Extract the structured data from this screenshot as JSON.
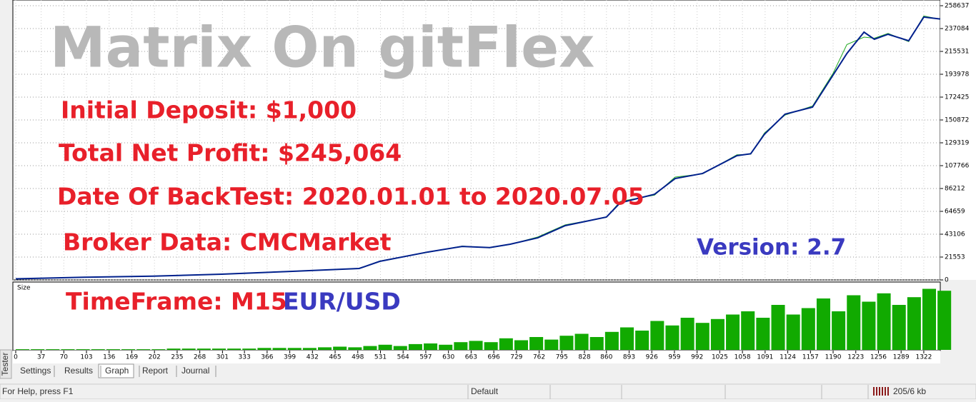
{
  "chart_data": [
    {
      "type": "line",
      "xlim": [
        0,
        1346
      ],
      "ylim": [
        0,
        258637
      ],
      "xticks": [
        0,
        37,
        70,
        103,
        136,
        169,
        202,
        235,
        268,
        301,
        333,
        366,
        399,
        432,
        465,
        498,
        531,
        564,
        597,
        630,
        663,
        696,
        729,
        762,
        795,
        828,
        860,
        893,
        926,
        959,
        992,
        1025,
        1058,
        1091,
        1124,
        1157,
        1190,
        1223,
        1256,
        1289,
        1322
      ],
      "yticks": [
        0,
        21553,
        43106,
        64659,
        86212,
        107766,
        129319,
        150872,
        172425,
        193978,
        215531,
        237084,
        258637
      ],
      "grid": true,
      "x": [
        0,
        100,
        200,
        300,
        400,
        500,
        530,
        600,
        650,
        690,
        720,
        760,
        800,
        860,
        880,
        930,
        960,
        1000,
        1050,
        1070,
        1090,
        1120,
        1160,
        1190,
        1210,
        1235,
        1250,
        1270,
        1300,
        1322,
        1346
      ],
      "series": [
        {
          "color": "#22aa22",
          "values": [
            1000,
            2400,
            3600,
            5300,
            8200,
            10600,
            17800,
            26000,
            31900,
            30200,
            33500,
            40500,
            52000,
            59000,
            74000,
            80000,
            97000,
            100000,
            118000,
            118500,
            138500,
            155500,
            164000,
            195000,
            222000,
            229000,
            228000,
            232500,
            224800,
            249000,
            245800
          ]
        },
        {
          "color": "#00208c",
          "values": [
            1000,
            2500,
            3500,
            5400,
            8000,
            10800,
            17500,
            26300,
            31600,
            30500,
            33700,
            39700,
            51200,
            59300,
            72700,
            80800,
            95600,
            100400,
            117200,
            119000,
            137400,
            156300,
            163000,
            193300,
            213500,
            233700,
            227000,
            231700,
            225600,
            247900,
            246064
          ]
        }
      ]
    },
    {
      "type": "bar",
      "title": "Size",
      "color": "#11aa00",
      "xlim": [
        0,
        1346
      ],
      "ylim": [
        0,
        100
      ],
      "x": [
        0,
        22,
        44,
        66,
        88,
        110,
        132,
        154,
        176,
        198,
        220,
        242,
        264,
        286,
        308,
        330,
        352,
        374,
        396,
        418,
        440,
        462,
        484,
        506,
        528,
        550,
        572,
        594,
        616,
        638,
        660,
        682,
        704,
        726,
        748,
        770,
        792,
        814,
        836,
        858,
        880,
        902,
        924,
        946,
        968,
        990,
        1012,
        1034,
        1056,
        1078,
        1100,
        1122,
        1144,
        1166,
        1188,
        1210,
        1232,
        1254,
        1276,
        1298,
        1320,
        1342
      ],
      "values": [
        1,
        1,
        1,
        1,
        1,
        1,
        1,
        1,
        1,
        1,
        2,
        2,
        2,
        2,
        2,
        2,
        3,
        3,
        3,
        3,
        4,
        5,
        4,
        6,
        8,
        6,
        9,
        10,
        8,
        12,
        14,
        12,
        18,
        15,
        20,
        16,
        22,
        25,
        20,
        28,
        35,
        30,
        45,
        38,
        50,
        42,
        48,
        55,
        60,
        50,
        70,
        55,
        65,
        80,
        60,
        85,
        75,
        88,
        70,
        82,
        95,
        92
      ]
    }
  ],
  "overlay": {
    "title": "Matrix On gitFlex",
    "initial_deposit": "Initial Deposit: $1,000",
    "net_profit": "Total Net Profit: $245,064",
    "dates": "Date Of BackTest: 2020.01.01 to 2020.07.05",
    "broker": "Broker Data: CMCMarket",
    "version": "Version: 2.7",
    "timeframe": "TimeFrame: M15",
    "pair": "EUR/USD"
  },
  "side_label": "Tester",
  "tabs": [
    "Settings",
    "Results",
    "Graph",
    "Report",
    "Journal"
  ],
  "status_bar": [
    "For Help, press F1",
    "Default",
    "205/6 kb"
  ]
}
